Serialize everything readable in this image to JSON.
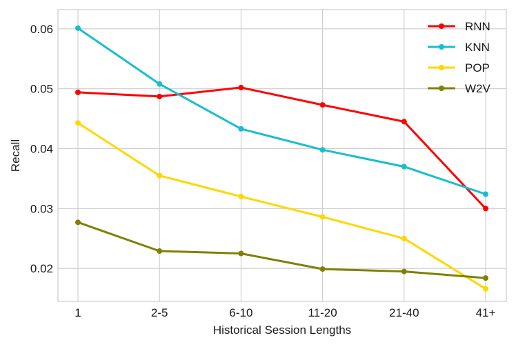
{
  "chart_data": {
    "type": "line",
    "title": "",
    "xlabel": "Historical Session Lengths",
    "ylabel": "Recall",
    "categories": [
      "1",
      "2-5",
      "6-10",
      "11-20",
      "21-40",
      "41+"
    ],
    "y_ticks": [
      "0.02",
      "0.03",
      "0.04",
      "0.05",
      "0.06"
    ],
    "ylim": [
      0.0145,
      0.0632
    ],
    "grid": true,
    "legend_position": "top-right",
    "series": [
      {
        "name": "RNN",
        "color": "#ff0000",
        "values": [
          0.0494,
          0.0487,
          0.0502,
          0.0473,
          0.0445,
          0.03
        ]
      },
      {
        "name": "KNN",
        "color": "#17becf",
        "values": [
          0.0601,
          0.0508,
          0.0433,
          0.0398,
          0.037,
          0.0324
        ]
      },
      {
        "name": "POP",
        "color": "#ffd700",
        "values": [
          0.0443,
          0.0355,
          0.032,
          0.0286,
          0.025,
          0.0166
        ]
      },
      {
        "name": "W2V",
        "color": "#808000",
        "values": [
          0.0277,
          0.0229,
          0.0225,
          0.0199,
          0.0195,
          0.0184
        ]
      }
    ]
  }
}
